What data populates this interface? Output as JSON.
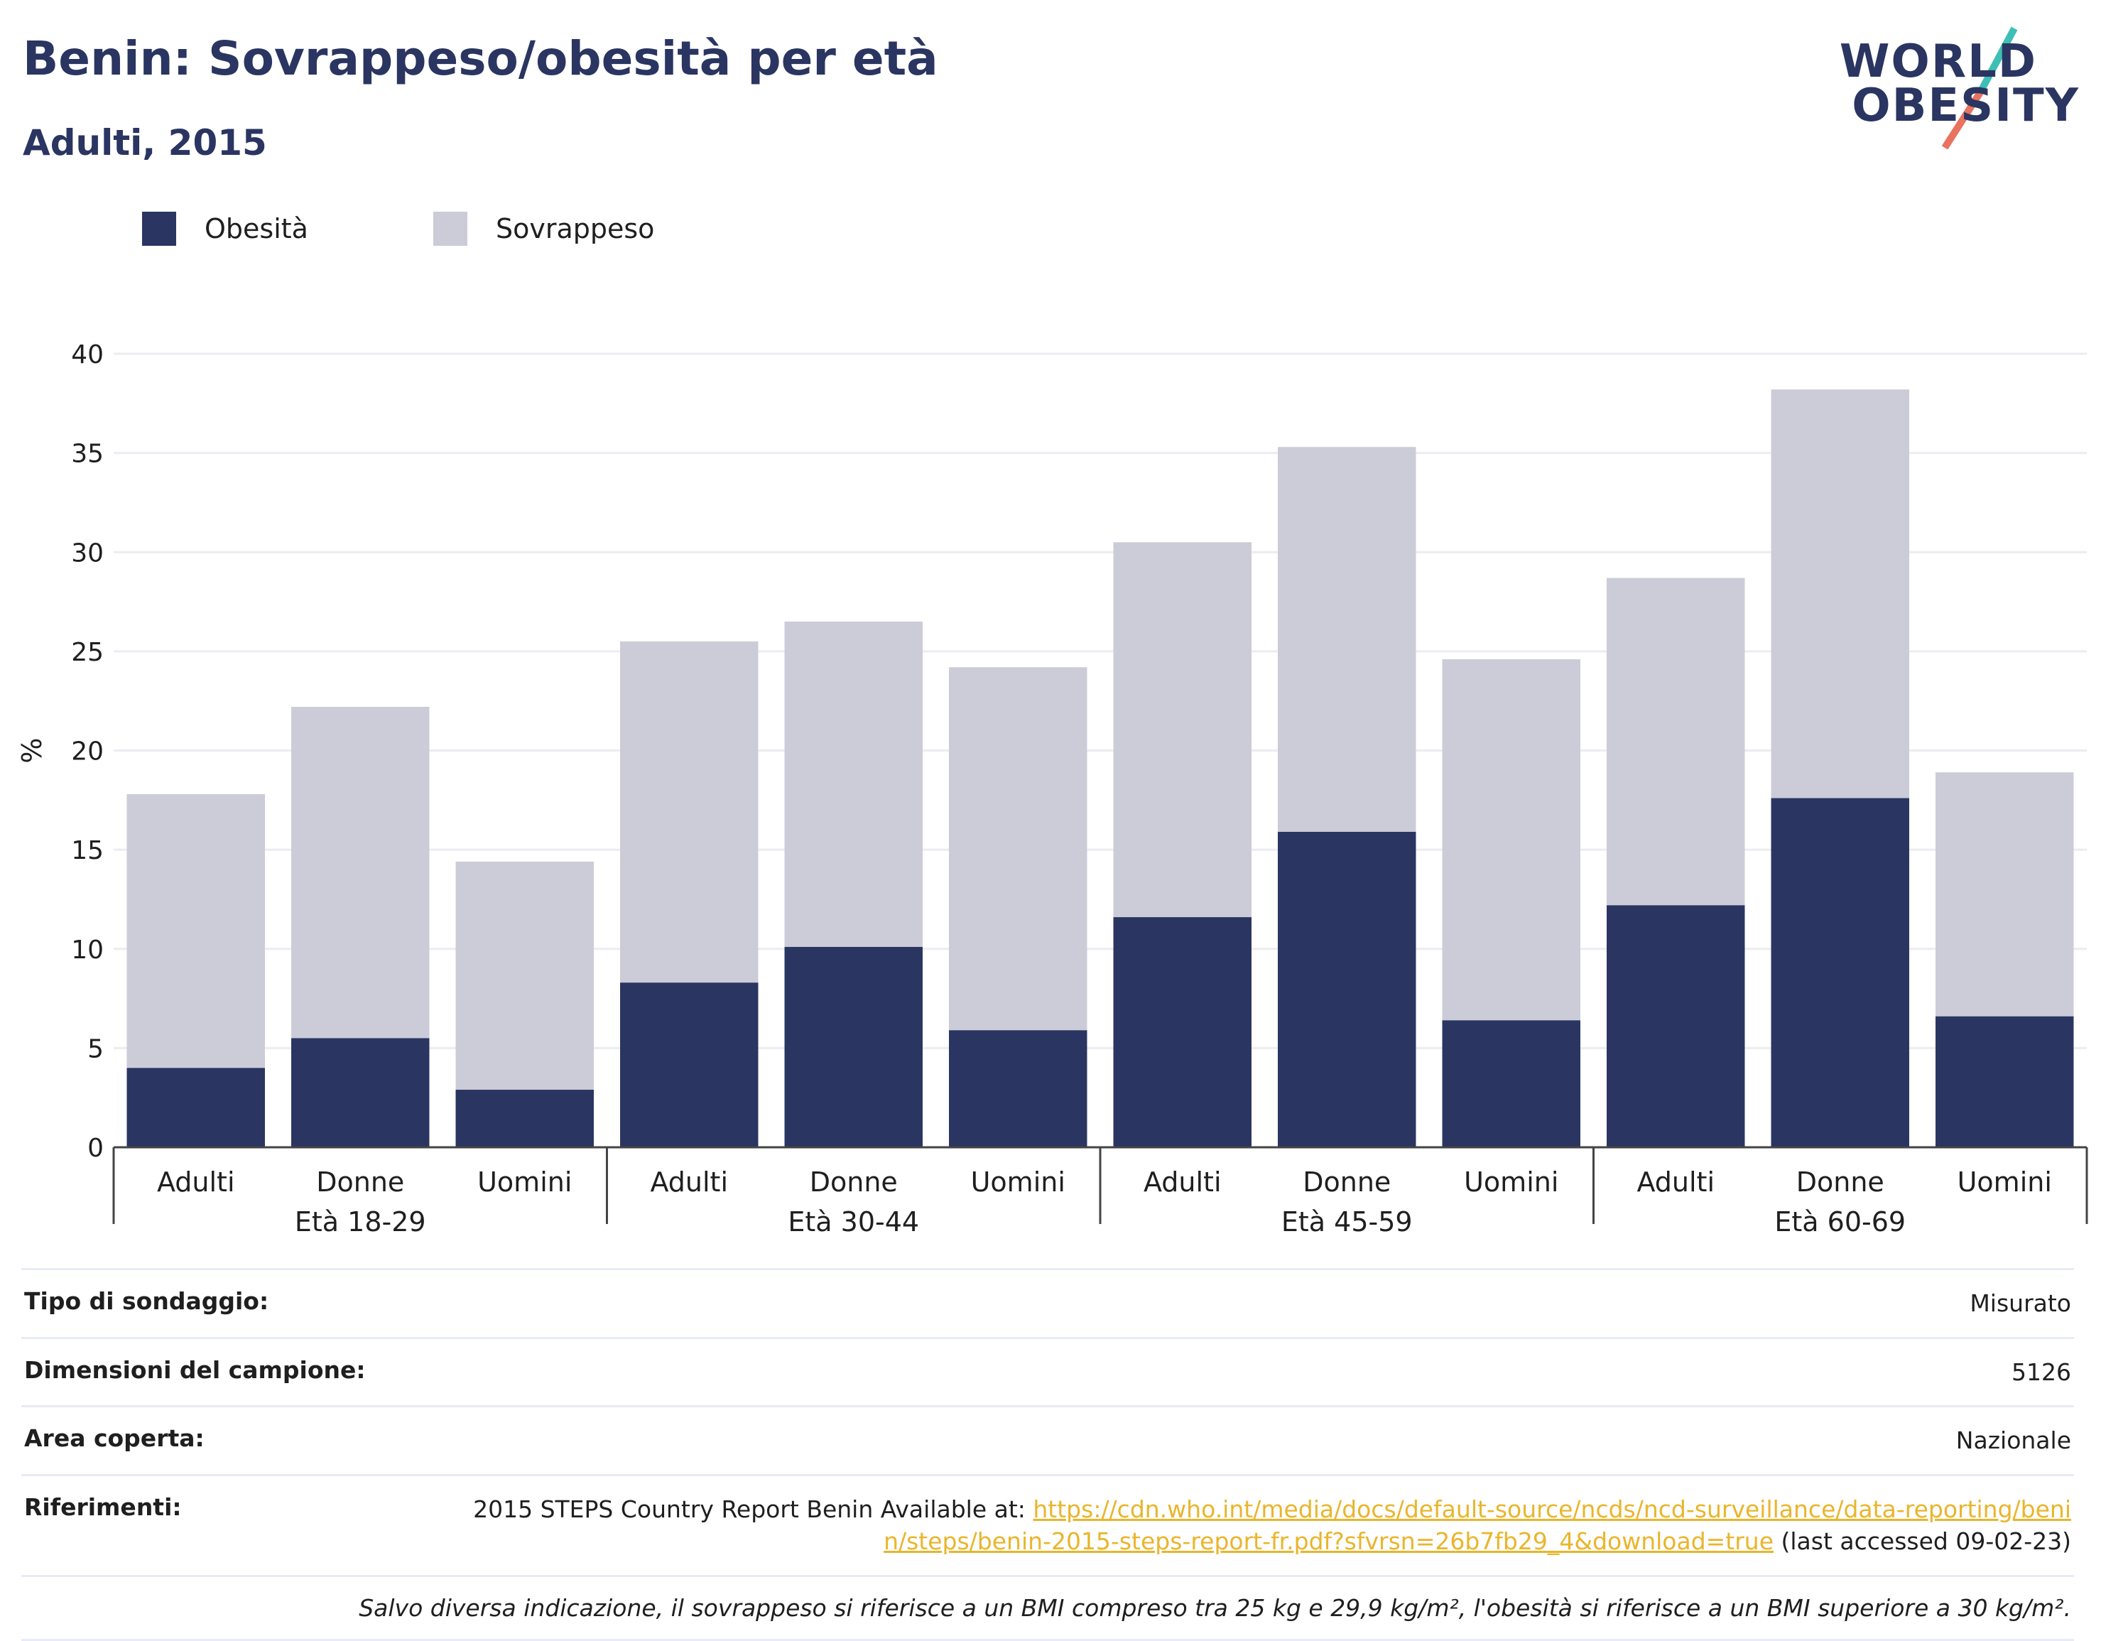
{
  "header": {
    "title": "Benin: Sovrappeso/obesità per età",
    "subtitle": "Adulti, 2015"
  },
  "logo": {
    "line1": "WORLD",
    "line2": "OBESITY"
  },
  "colors": {
    "obesity": "#2a3561",
    "overweight": "#cbccd8",
    "title": "#2a3561",
    "link": "#e9b52b",
    "logo_teal": "#3dbfb5",
    "logo_coral": "#e8735f"
  },
  "legend": [
    {
      "label": "Obesità",
      "color": "#2a3561"
    },
    {
      "label": "Sovrappeso",
      "color": "#cbccd8"
    }
  ],
  "chart_data": {
    "type": "bar",
    "stacked": true,
    "ylabel": "%",
    "ylim": [
      0,
      40
    ],
    "yticks": [
      0,
      5,
      10,
      15,
      20,
      25,
      30,
      35,
      40
    ],
    "grid": true,
    "legend_position": "top-left",
    "groups": [
      "Età 18-29",
      "Età 30-44",
      "Età 45-59",
      "Età 60-69"
    ],
    "categories": [
      "Adulti",
      "Donne",
      "Uomini",
      "Adulti",
      "Donne",
      "Uomini",
      "Adulti",
      "Donne",
      "Uomini",
      "Adulti",
      "Donne",
      "Uomini"
    ],
    "series": [
      {
        "name": "Obesità",
        "values": [
          4.0,
          5.5,
          2.9,
          8.3,
          10.1,
          5.9,
          11.6,
          15.9,
          6.4,
          12.2,
          17.6,
          6.6
        ]
      },
      {
        "name": "Sovrappeso",
        "values": [
          13.8,
          16.7,
          11.5,
          17.2,
          16.4,
          18.3,
          18.9,
          19.4,
          18.2,
          16.5,
          20.6,
          12.3
        ]
      }
    ]
  },
  "info": {
    "rows": [
      {
        "key": "Tipo di sondaggio:",
        "value": "Misurato"
      },
      {
        "key": "Dimensioni del campione:",
        "value": "5126"
      },
      {
        "key": "Area coperta:",
        "value": "Nazionale"
      }
    ],
    "references": {
      "key": "Riferimenti:",
      "prefix": "2015 STEPS Country Report Benin Available at: ",
      "link": "https://cdn.who.int/media/docs/default-source/ncds/ncd-surveillance/data-reporting/benin/steps/benin-2015-steps-report-fr.pdf?sfvrsn=26b7fb29_4&download=true",
      "suffix": " (last accessed 09-02-23)"
    },
    "note": "Salvo diversa indicazione, il sovrappeso si riferisce a un BMI compreso tra 25 kg e 29,9 kg/m², l'obesità si riferisce a un BMI superiore a 30 kg/m²."
  }
}
